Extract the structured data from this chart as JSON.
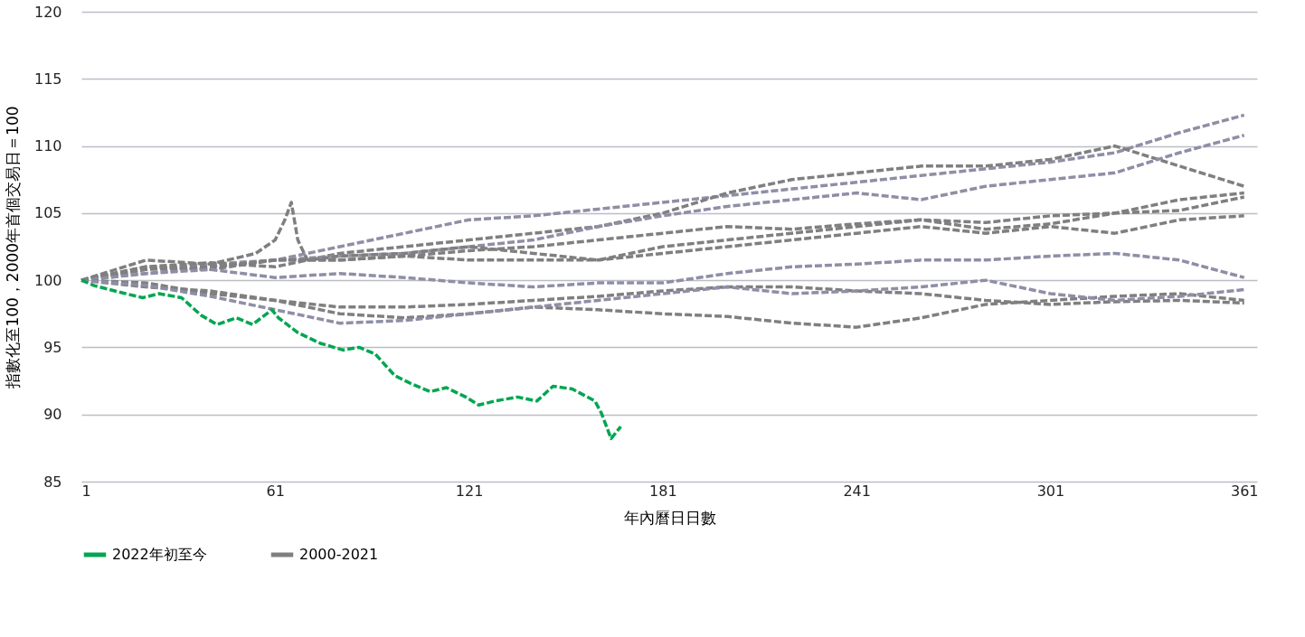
{
  "chart_data": {
    "type": "line",
    "xlabel": "年內曆日日數",
    "ylabel": "指數化至100，2000年首個交易日＝100",
    "xlim": [
      1,
      365
    ],
    "xticks": [
      1,
      61,
      121,
      181,
      241,
      301,
      361
    ],
    "ylim": [
      85,
      120
    ],
    "yticks": [
      85,
      90,
      95,
      100,
      105,
      110,
      115,
      120
    ],
    "grid": "y",
    "legend": "bottom",
    "line_style": "dashed",
    "x": [
      1,
      21,
      41,
      61,
      81,
      101,
      121,
      141,
      161,
      181,
      201,
      221,
      241,
      261,
      281,
      301,
      321,
      341,
      361
    ],
    "series": [
      {
        "color": "#8e8ea6",
        "values": [
          100,
          100.8,
          101.2,
          101.5,
          102.5,
          103.5,
          104.5,
          104.8,
          105.3,
          105.8,
          106.3,
          106.8,
          107.3,
          107.8,
          108.3,
          108.8,
          109.5,
          111,
          112.3
        ]
      },
      {
        "color": "#7f7f7f",
        "values": [
          100,
          101,
          101.3,
          101,
          102,
          102.5,
          103,
          103.5,
          104,
          105,
          106.5,
          107.5,
          108,
          108.5,
          108.5,
          109,
          110,
          108.5,
          107
        ]
      },
      {
        "color": "#8e8ea6",
        "values": [
          100,
          100.5,
          101,
          101.5,
          101.8,
          102,
          102.5,
          103,
          104,
          104.8,
          105.5,
          106,
          106.5,
          106,
          107,
          107.5,
          108,
          109.5,
          110.8
        ]
      },
      {
        "color": "#7f7f7f",
        "values": [
          100,
          100.8,
          101,
          101.5,
          101.5,
          101.8,
          102.2,
          102.5,
          103,
          103.5,
          104,
          103.8,
          104.2,
          104.5,
          104.3,
          104.8,
          105,
          105.2,
          106.2
        ]
      },
      {
        "color": "#7f7f7f",
        "values": [
          100,
          101,
          100.8,
          101.5,
          101.5,
          101.8,
          101.5,
          101.5,
          101.5,
          102,
          102.5,
          103,
          103.5,
          104,
          103.5,
          104,
          103.5,
          104.5,
          104.8
        ]
      },
      {
        "color": "#8e8ea6",
        "values": [
          100,
          100.5,
          100.8,
          100.2,
          100.5,
          100.2,
          99.8,
          99.5,
          99.8,
          99.8,
          100.5,
          101,
          101.2,
          101.5,
          101.5,
          101.8,
          102,
          101.5,
          100.2
        ]
      },
      {
        "color": "#7f7f7f",
        "values": [
          100,
          99.5,
          99.2,
          98.5,
          98,
          98,
          98.2,
          98.5,
          98.8,
          99.2,
          99.5,
          99.5,
          99.2,
          99,
          98.5,
          98.2,
          98.4,
          98.5,
          98.3
        ]
      },
      {
        "color": "#7f7f7f",
        "values": [
          100,
          99.8,
          99,
          98.5,
          97.5,
          97.2,
          97.5,
          98,
          97.8,
          97.5,
          97.3,
          96.8,
          96.5,
          97.2,
          98.2,
          98.5,
          98.8,
          99,
          98.5
        ]
      },
      {
        "color": "#8e8ea6",
        "values": [
          100,
          99.6,
          98.8,
          97.8,
          96.8,
          97,
          97.5,
          98,
          98.5,
          99,
          99.5,
          99,
          99.2,
          99.5,
          100,
          99,
          98.5,
          98.8,
          99.3
        ]
      },
      {
        "name": "2000-2021",
        "color": "#7f7f7f",
        "x": [
          1,
          21,
          41,
          55,
          61,
          64,
          66,
          68,
          71,
          81,
          101,
          121,
          141,
          161,
          181,
          201,
          221,
          241,
          261,
          281,
          301,
          321,
          341,
          361
        ],
        "values": [
          100,
          101.5,
          101.2,
          102,
          103,
          104.5,
          105.8,
          103,
          101.5,
          101.8,
          102,
          102.5,
          102,
          101.5,
          102.5,
          103,
          103.5,
          104,
          104.5,
          103.8,
          104.2,
          105,
          106,
          106.5
        ]
      },
      {
        "name": "2022年初至今",
        "color": "#00a651",
        "x": [
          1,
          5,
          13,
          20,
          25,
          32,
          38,
          43,
          49,
          54,
          60,
          62,
          68,
          75,
          82,
          87,
          92,
          98,
          103,
          109,
          114,
          120,
          124,
          129,
          136,
          142,
          147,
          153,
          160,
          162,
          165,
          168
        ],
        "values": [
          100,
          99.6,
          99.1,
          98.7,
          99,
          98.7,
          97.4,
          96.7,
          97.2,
          96.7,
          97.8,
          97.2,
          96.1,
          95.3,
          94.8,
          95,
          94.5,
          92.9,
          92.3,
          91.7,
          92,
          91.3,
          90.7,
          91,
          91.3,
          91,
          92.1,
          91.9,
          91,
          90.1,
          88.2,
          89.1
        ]
      }
    ]
  }
}
